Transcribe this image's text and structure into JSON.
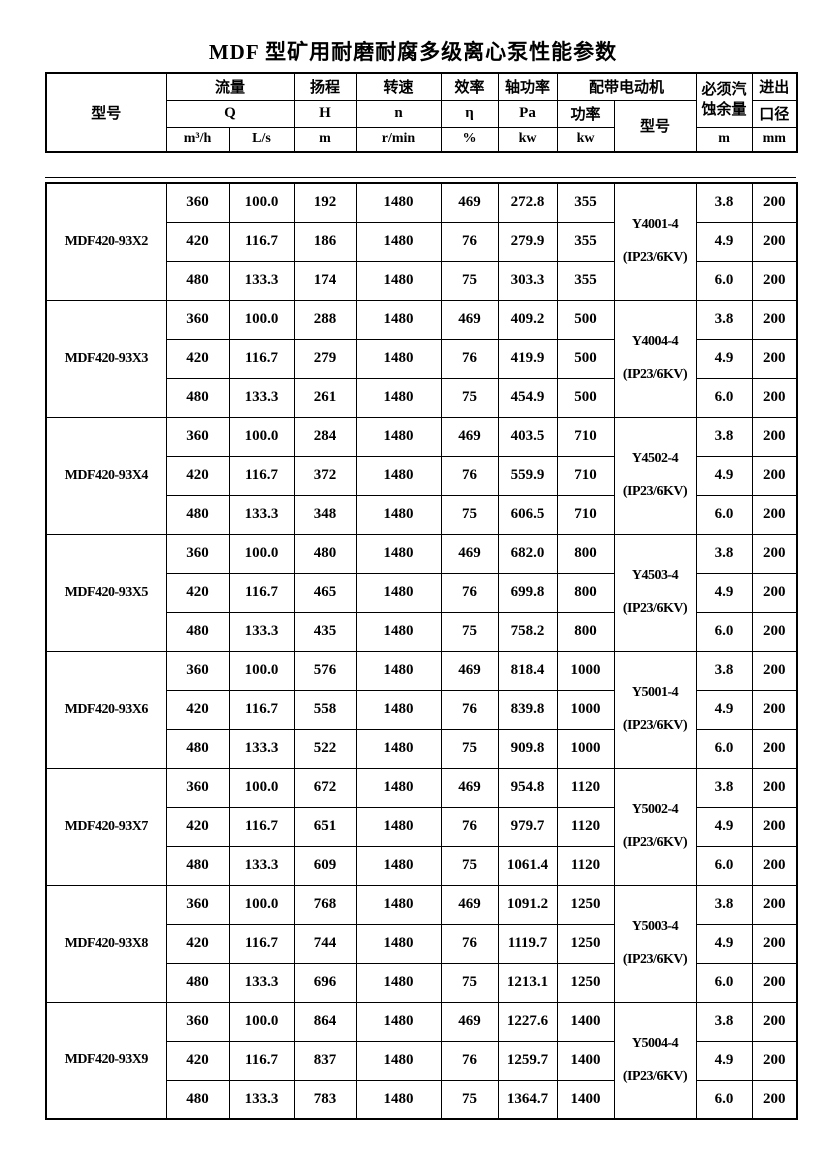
{
  "title": "MDF 型矿用耐磨耐腐多级离心泵性能参数",
  "header": {
    "model": "型号",
    "flow": "流量",
    "flow_symbol": "Q",
    "flow_unit_1": "m³/h",
    "flow_unit_2": "L/s",
    "head": "扬程",
    "head_symbol": "H",
    "head_unit": "m",
    "speed": "转速",
    "speed_symbol": "n",
    "speed_unit": "r/min",
    "efficiency": "效率",
    "efficiency_symbol": "η",
    "efficiency_unit": "%",
    "shaft_power": "轴功率",
    "shaft_power_symbol": "Pa",
    "shaft_power_unit": "kw",
    "motor_group": "配带电动机",
    "motor_power": "功率",
    "motor_power_unit": "kw",
    "motor_model": "型号",
    "npsh_line1": "必须汽",
    "npsh_line2": "蚀余量",
    "npsh_unit": "m",
    "port_line1": "进出",
    "port_line2": "口径",
    "port_unit": "mm"
  },
  "blocks": [
    {
      "model": "MDF420-93X2",
      "motor": "Y4001-4",
      "motor_frame": "(IP23/6KV)",
      "rows": [
        [
          "360",
          "100.0",
          "192",
          "1480",
          "469",
          "272.8",
          "355",
          "3.8",
          "200"
        ],
        [
          "420",
          "116.7",
          "186",
          "1480",
          "76",
          "279.9",
          "355",
          "4.9",
          "200"
        ],
        [
          "480",
          "133.3",
          "174",
          "1480",
          "75",
          "303.3",
          "355",
          "6.0",
          "200"
        ]
      ]
    },
    {
      "model": "MDF420-93X3",
      "motor": "Y4004-4",
      "motor_frame": "(IP23/6KV)",
      "rows": [
        [
          "360",
          "100.0",
          "288",
          "1480",
          "469",
          "409.2",
          "500",
          "3.8",
          "200"
        ],
        [
          "420",
          "116.7",
          "279",
          "1480",
          "76",
          "419.9",
          "500",
          "4.9",
          "200"
        ],
        [
          "480",
          "133.3",
          "261",
          "1480",
          "75",
          "454.9",
          "500",
          "6.0",
          "200"
        ]
      ]
    },
    {
      "model": "MDF420-93X4",
      "motor": "Y4502-4",
      "motor_frame": "(IP23/6KV)",
      "rows": [
        [
          "360",
          "100.0",
          "284",
          "1480",
          "469",
          "403.5",
          "710",
          "3.8",
          "200"
        ],
        [
          "420",
          "116.7",
          "372",
          "1480",
          "76",
          "559.9",
          "710",
          "4.9",
          "200"
        ],
        [
          "480",
          "133.3",
          "348",
          "1480",
          "75",
          "606.5",
          "710",
          "6.0",
          "200"
        ]
      ]
    },
    {
      "model": "MDF420-93X5",
      "motor": "Y4503-4",
      "motor_frame": "(IP23/6KV)",
      "rows": [
        [
          "360",
          "100.0",
          "480",
          "1480",
          "469",
          "682.0",
          "800",
          "3.8",
          "200"
        ],
        [
          "420",
          "116.7",
          "465",
          "1480",
          "76",
          "699.8",
          "800",
          "4.9",
          "200"
        ],
        [
          "480",
          "133.3",
          "435",
          "1480",
          "75",
          "758.2",
          "800",
          "6.0",
          "200"
        ]
      ]
    },
    {
      "model": "MDF420-93X6",
      "motor": "Y5001-4",
      "motor_frame": "(IP23/6KV)",
      "rows": [
        [
          "360",
          "100.0",
          "576",
          "1480",
          "469",
          "818.4",
          "1000",
          "3.8",
          "200"
        ],
        [
          "420",
          "116.7",
          "558",
          "1480",
          "76",
          "839.8",
          "1000",
          "4.9",
          "200"
        ],
        [
          "480",
          "133.3",
          "522",
          "1480",
          "75",
          "909.8",
          "1000",
          "6.0",
          "200"
        ]
      ]
    },
    {
      "model": "MDF420-93X7",
      "motor": "Y5002-4",
      "motor_frame": "(IP23/6KV)",
      "rows": [
        [
          "360",
          "100.0",
          "672",
          "1480",
          "469",
          "954.8",
          "1120",
          "3.8",
          "200"
        ],
        [
          "420",
          "116.7",
          "651",
          "1480",
          "76",
          "979.7",
          "1120",
          "4.9",
          "200"
        ],
        [
          "480",
          "133.3",
          "609",
          "1480",
          "75",
          "1061.4",
          "1120",
          "6.0",
          "200"
        ]
      ]
    },
    {
      "model": "MDF420-93X8",
      "motor": "Y5003-4",
      "motor_frame": "(IP23/6KV)",
      "rows": [
        [
          "360",
          "100.0",
          "768",
          "1480",
          "469",
          "1091.2",
          "1250",
          "3.8",
          "200"
        ],
        [
          "420",
          "116.7",
          "744",
          "1480",
          "76",
          "1119.7",
          "1250",
          "4.9",
          "200"
        ],
        [
          "480",
          "133.3",
          "696",
          "1480",
          "75",
          "1213.1",
          "1250",
          "6.0",
          "200"
        ]
      ]
    },
    {
      "model": "MDF420-93X9",
      "motor": "Y5004-4",
      "motor_frame": "(IP23/6KV)",
      "rows": [
        [
          "360",
          "100.0",
          "864",
          "1480",
          "469",
          "1227.6",
          "1400",
          "3.8",
          "200"
        ],
        [
          "420",
          "116.7",
          "837",
          "1480",
          "76",
          "1259.7",
          "1400",
          "4.9",
          "200"
        ],
        [
          "480",
          "133.3",
          "783",
          "1480",
          "75",
          "1364.7",
          "1400",
          "6.0",
          "200"
        ]
      ]
    }
  ]
}
